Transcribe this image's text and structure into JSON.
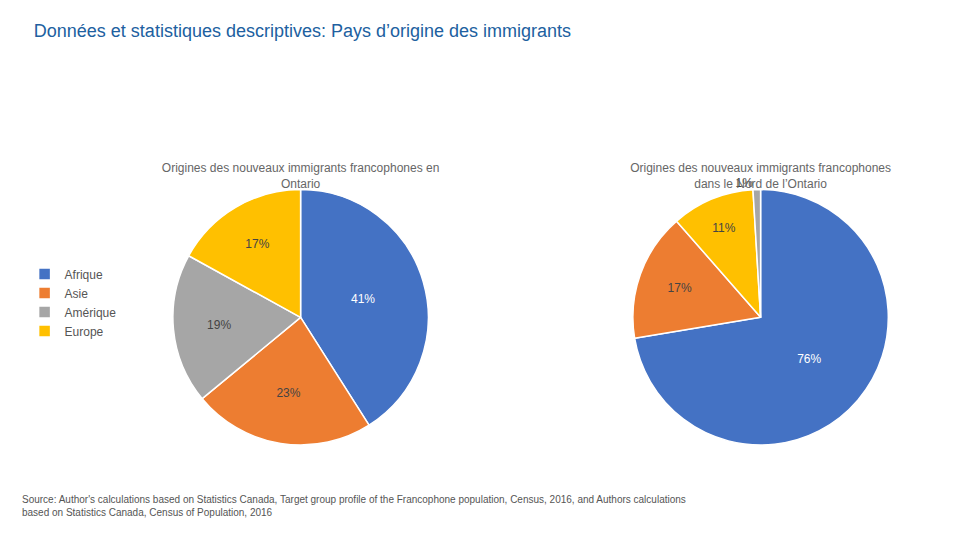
{
  "title": "Données et statistiques descriptives: Pays d’origine des immigrants",
  "annotations": [
    "Source: Author's calculations based on Statistics Canada, Target group profile of the Francophone population, Census, 2016, and Authors calculations\nbased on Statistics Canada, Census of Population, 2016"
  ],
  "chart_data": [
    {
      "type": "pie",
      "title": "Origines des nouveaux immigrants francophones en\nOntario",
      "categories": [
        "Afrique",
        "Asie",
        "Amérique",
        "Europe"
      ],
      "values": [
        41,
        23,
        19,
        17
      ],
      "value_labels": [
        "41%",
        "23%",
        "19%",
        "17%"
      ],
      "colors": [
        "#4472C4",
        "#ED7D31",
        "#A6A6A6",
        "#FFC000"
      ],
      "data_labels": true,
      "legend": "left"
    },
    {
      "type": "pie",
      "title": "Origines des nouveaux immigrants francophones\ndans le Nord de l’Ontario",
      "categories": [
        "Afrique",
        "Asie",
        "Europe",
        "Amérique"
      ],
      "values": [
        76,
        17,
        11,
        1
      ],
      "value_labels": [
        "76%",
        "17%",
        "11%",
        "1%"
      ],
      "colors": [
        "#4472C4",
        "#ED7D31",
        "#FFC000",
        "#A6A6A6"
      ],
      "data_labels": true,
      "legend": "left"
    }
  ]
}
